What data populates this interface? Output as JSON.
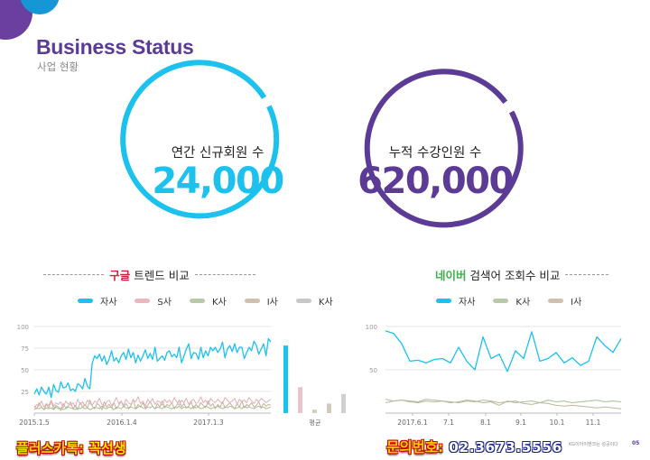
{
  "header": {
    "title": "Business Status",
    "subtitle": "사업 현황"
  },
  "metrics": [
    {
      "label": "연간 신규회원 수",
      "value": "24,000",
      "color": "#1cc1ee"
    },
    {
      "label": "누적 수강인원 수",
      "value": "620,000",
      "color": "#5b3b95"
    }
  ],
  "google_section": {
    "title_highlight": "구글",
    "title_rest": " 트렌드 비교",
    "legend": [
      {
        "name": "자사",
        "color": "#1cc1ee"
      },
      {
        "name": "S사",
        "color": "#e8b7c0"
      },
      {
        "name": "K사",
        "color": "#b9c9a8"
      },
      {
        "name": "I사",
        "color": "#cfc1ae"
      },
      {
        "name": "K사",
        "color": "#c8c8c8"
      }
    ]
  },
  "naver_section": {
    "title_highlight": "네이버",
    "title_rest": " 검색어 조회수 비교",
    "legend": [
      {
        "name": "자사",
        "color": "#1cc1ee"
      },
      {
        "name": "K사",
        "color": "#b9c9a8"
      },
      {
        "name": "I사",
        "color": "#cfc1ae"
      }
    ]
  },
  "chart_data": [
    {
      "type": "line",
      "ylim": [
        0,
        100
      ],
      "y_ticks": [
        "100",
        "75",
        "50",
        "25"
      ],
      "x_tick_labels": [
        "2015.1.5",
        "2016.1.4",
        "2017.1.3"
      ],
      "series": [
        {
          "name": "자사",
          "values": [
            22,
            28,
            21,
            30,
            25,
            22,
            30,
            18,
            33,
            26,
            24,
            36,
            29,
            30,
            35,
            26,
            28,
            25,
            34,
            32,
            28,
            40,
            31,
            28,
            58,
            66,
            63,
            68,
            60,
            66,
            56,
            62,
            72,
            60,
            64,
            58,
            66,
            70,
            62,
            74,
            64,
            70,
            58,
            67,
            60,
            66,
            73,
            63,
            69,
            62,
            76,
            60,
            63,
            66,
            61,
            70,
            72,
            65,
            68,
            64,
            76,
            58,
            66,
            74,
            80,
            63,
            70,
            69,
            62,
            76,
            64,
            72,
            66,
            76,
            72,
            76,
            70,
            74,
            82,
            64,
            74,
            78,
            71,
            80,
            70,
            76,
            76,
            63,
            70,
            76,
            72,
            83,
            78,
            68,
            74,
            80,
            66,
            86,
            82
          ]
        },
        {
          "name": "S사",
          "values": [
            6,
            10,
            8,
            14,
            7,
            11,
            9,
            15,
            8,
            12,
            10,
            13,
            6,
            14,
            11,
            9,
            12,
            7,
            16,
            10,
            13,
            8,
            15,
            11,
            9,
            14,
            12,
            17,
            10,
            8,
            13,
            15,
            9,
            12,
            18,
            11,
            14,
            9,
            16,
            12,
            10,
            15,
            13,
            19,
            11,
            14,
            8,
            16,
            12,
            17,
            10,
            14,
            13,
            9,
            16,
            12,
            15,
            11,
            18,
            13,
            9,
            15,
            12,
            17,
            10,
            14,
            16,
            11,
            13,
            19,
            12,
            15,
            10,
            17,
            14,
            12,
            16,
            13,
            11,
            18,
            15,
            12,
            14,
            17,
            10,
            16,
            13,
            15,
            12,
            18,
            14,
            11,
            16,
            13,
            17,
            15,
            12,
            14,
            16
          ]
        },
        {
          "name": "K사",
          "values": [
            4,
            6,
            5,
            7,
            4,
            6,
            5,
            6,
            4,
            7,
            5,
            6,
            4,
            5,
            7,
            6,
            5,
            4,
            6,
            5,
            7,
            5,
            6,
            4,
            5,
            7,
            6,
            5,
            8,
            6,
            5,
            7,
            6,
            4,
            7,
            6,
            5,
            8,
            6,
            5,
            7,
            6,
            5,
            7,
            8,
            6,
            5,
            7,
            6,
            8,
            5,
            7,
            6,
            5,
            8,
            7,
            6,
            5,
            7,
            6,
            8,
            5,
            7,
            6,
            7,
            5,
            8,
            6,
            7,
            5,
            6,
            8,
            7,
            5,
            6,
            7,
            8,
            6,
            5,
            7,
            6,
            8,
            7,
            5,
            6,
            7,
            5,
            8,
            6,
            7,
            6,
            5,
            7,
            8,
            6,
            7,
            5,
            6,
            7
          ]
        },
        {
          "name": "I사",
          "values": [
            8,
            5,
            12,
            7,
            4,
            10,
            6,
            14,
            5,
            9,
            7,
            3,
            11,
            6,
            8,
            13,
            5,
            9,
            4,
            12,
            7,
            10,
            6,
            15,
            8,
            5,
            11,
            9,
            4,
            13,
            7,
            10,
            6,
            12,
            5,
            9,
            14,
            7,
            11,
            6,
            8,
            16,
            5,
            10,
            7,
            12,
            6,
            9,
            13,
            8,
            5,
            11,
            7,
            14,
            6,
            10,
            8,
            12,
            5,
            9,
            15,
            7,
            11,
            6,
            8,
            13,
            5,
            10,
            7,
            12,
            9,
            6,
            14,
            8,
            11,
            5,
            10,
            7,
            13,
            6,
            9,
            12,
            8,
            5,
            11,
            7,
            14,
            6,
            10,
            8,
            12,
            7,
            9,
            13,
            6,
            11,
            8,
            10,
            9
          ]
        }
      ],
      "average_bars": [
        {
          "name": "자사",
          "value": 78,
          "color": "#1cc1ee"
        },
        {
          "name": "S사",
          "value": 30,
          "color": "#e8c5cb"
        },
        {
          "name": "K사",
          "value": 4,
          "color": "#c7d4bb"
        },
        {
          "name": "I사",
          "value": 11,
          "color": "#d4c8b8"
        },
        {
          "name": "K사",
          "value": 22,
          "color": "#d0d0d0"
        }
      ],
      "average_label": "평균"
    },
    {
      "type": "line",
      "ylim": [
        0,
        100
      ],
      "y_ticks": [
        "100",
        "50"
      ],
      "x_tick_labels": [
        "2017.6.1",
        "7.1",
        "8.1",
        "9.1",
        "10.1",
        "11.1"
      ],
      "series": [
        {
          "name": "자사",
          "values": [
            95,
            92,
            80,
            60,
            61,
            58,
            62,
            63,
            58,
            76,
            60,
            50,
            88,
            63,
            68,
            48,
            72,
            63,
            94,
            60,
            63,
            70,
            58,
            64,
            55,
            60,
            88,
            78,
            70,
            86
          ]
        },
        {
          "name": "K사",
          "values": [
            12,
            14,
            15,
            13,
            12,
            14,
            13,
            14,
            12,
            13,
            15,
            14,
            12,
            13,
            9,
            14,
            12,
            13,
            14,
            12,
            15,
            13,
            14,
            12,
            13,
            14,
            15,
            13,
            14,
            13
          ]
        },
        {
          "name": "I사",
          "values": [
            16,
            14,
            15,
            14,
            13,
            16,
            15,
            14,
            13,
            12,
            14,
            13,
            15,
            14,
            12,
            13,
            14,
            11,
            10,
            12,
            11,
            9,
            8,
            9,
            8,
            7,
            6,
            7,
            6,
            5
          ]
        }
      ]
    }
  ],
  "footer": {
    "left_label": "플러스카톡:",
    "left_value": " 꼭선생",
    "right_label": "문의번호:",
    "right_value": " 02.3673.5556",
    "brand": "KG이아이벤크는 성공이다",
    "page": "05"
  }
}
